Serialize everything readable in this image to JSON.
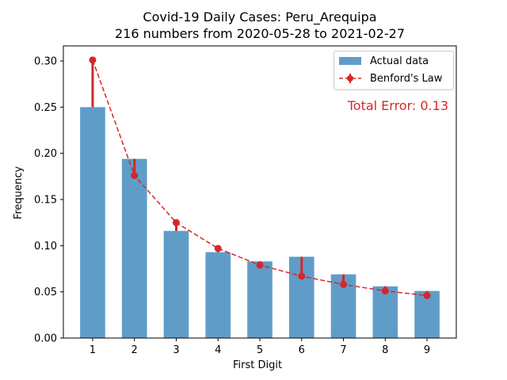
{
  "chart_data": {
    "type": "bar",
    "title": "Covid-19 Daily Cases: Peru_Arequipa",
    "subtitle": "216 numbers from 2020-05-28 to 2021-02-27",
    "xlabel": "First Digit",
    "ylabel": "Frequency",
    "categories": [
      "1",
      "2",
      "3",
      "4",
      "5",
      "6",
      "7",
      "8",
      "9"
    ],
    "ylim": [
      0,
      0.32
    ],
    "yticks": [
      "0.00",
      "0.05",
      "0.10",
      "0.15",
      "0.20",
      "0.25",
      "0.30"
    ],
    "ytick_values": [
      0,
      0.05,
      0.1,
      0.15,
      0.2,
      0.25,
      0.3
    ],
    "series": [
      {
        "name": "Actual data",
        "type": "bar",
        "color": "#5f9dc8",
        "values": [
          0.25,
          0.194,
          0.116,
          0.093,
          0.083,
          0.088,
          0.069,
          0.056,
          0.051
        ]
      },
      {
        "name": "Benford's Law",
        "type": "line",
        "color": "#d62728",
        "style": "dashed",
        "values": [
          0.301,
          0.176,
          0.125,
          0.097,
          0.079,
          0.067,
          0.058,
          0.051,
          0.046
        ]
      }
    ],
    "annotation": "Total Error: 0.13",
    "legend_position": "top-right",
    "grid": false
  }
}
